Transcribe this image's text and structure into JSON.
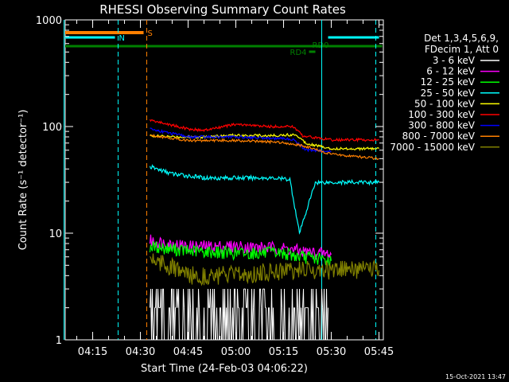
{
  "chart_data": {
    "type": "line",
    "title": "RHESSI Observing Summary Count Rates",
    "xlabel": "Start Time (24-Feb-03 04:06:22)",
    "ylabel": "Count Rate (s⁻¹ detector⁻¹)",
    "y_scale": "log",
    "ylim": [
      1,
      1000
    ],
    "xlim_minutes_after_04_06_22": [
      0,
      100
    ],
    "x_tick_labels": [
      "04:15",
      "04:30",
      "04:45",
      "05:00",
      "05:15",
      "05:30",
      "05:45"
    ],
    "y_tick_labels": [
      "1",
      "10",
      "100",
      "1000"
    ],
    "legend_header": [
      "Det 1,3,4,5,6,9,",
      "FDecim 1, Att 0"
    ],
    "timestamp": "15-Oct-2021 13:47",
    "flags": [
      {
        "label": "S",
        "color": "#ff8000",
        "start": "04:06",
        "end": "04:31"
      },
      {
        "label": "N",
        "color": "#00ffff",
        "start": "04:06",
        "end": "04:22"
      },
      {
        "label": "N",
        "color": "#00ffff",
        "start": "05:29",
        "end": "05:45"
      },
      {
        "label": "RD0",
        "color": "#008000",
        "start": "04:06",
        "end": "05:46"
      },
      {
        "label": "RD4",
        "color": "#008000",
        "start": "05:23",
        "end": "05:25"
      }
    ],
    "vertical_markers": [
      {
        "time": "04:06",
        "color": "#00ffff",
        "style": "solid"
      },
      {
        "time": "04:23",
        "color": "#00ffff",
        "style": "dashed"
      },
      {
        "time": "04:32",
        "color": "#ff8000",
        "style": "dashed"
      },
      {
        "time": "05:27",
        "color": "#00ffff",
        "style": "solid"
      },
      {
        "time": "05:44",
        "color": "#00ffff",
        "style": "dashed"
      }
    ],
    "series": [
      {
        "name": "3 - 6 keV",
        "color": "#ffffff",
        "x": [
          "04:33",
          "04:45",
          "05:00",
          "05:15",
          "05:20",
          "05:25",
          "05:29"
        ],
        "values": [
          1.7,
          1.8,
          2.2,
          2.5,
          2.8,
          2.2,
          1.5
        ]
      },
      {
        "name": "6 - 12 keV",
        "color": "#ff00ff",
        "x": [
          "04:33",
          "04:45",
          "05:00",
          "05:15",
          "05:20",
          "05:25",
          "05:30"
        ],
        "values": [
          8.5,
          7.5,
          7.5,
          7.2,
          6.8,
          6.5,
          6.3
        ]
      },
      {
        "name": "12 - 25 keV",
        "color": "#00ff00",
        "x": [
          "04:33",
          "04:45",
          "05:00",
          "05:15",
          "05:20",
          "05:25",
          "05:30"
        ],
        "values": [
          7.5,
          6.8,
          6.5,
          6.5,
          6.0,
          5.8,
          5.5
        ]
      },
      {
        "name": "25 - 50 keV",
        "color": "#00ffff",
        "x": [
          "04:33",
          "04:40",
          "04:50",
          "05:00",
          "05:10",
          "05:17",
          "05:20",
          "05:25",
          "05:35",
          "05:45"
        ],
        "values": [
          42,
          36,
          33,
          33,
          33,
          32,
          10,
          30,
          30,
          30
        ]
      },
      {
        "name": "50 - 100 keV",
        "color": "#ffff00",
        "x": [
          "04:33",
          "04:40",
          "04:50",
          "05:00",
          "05:10",
          "05:19",
          "05:22",
          "05:30",
          "05:45"
        ],
        "values": [
          82,
          80,
          80,
          83,
          82,
          84,
          70,
          62,
          62
        ]
      },
      {
        "name": "100 - 300 keV",
        "color": "#ff0000",
        "x": [
          "04:33",
          "04:45",
          "04:50",
          "05:00",
          "05:10",
          "05:18",
          "05:21",
          "05:30",
          "05:45"
        ],
        "values": [
          115,
          95,
          92,
          105,
          100,
          100,
          82,
          75,
          75
        ]
      },
      {
        "name": "300 - 800 keV",
        "color": "#0000ff",
        "x": [
          "04:33",
          "04:45",
          "05:00",
          "05:10",
          "05:18",
          "05:22",
          "05:30"
        ],
        "values": [
          95,
          80,
          80,
          78,
          76,
          60,
          58
        ]
      },
      {
        "name": "800 - 7000 keV",
        "color": "#ff8000",
        "x": [
          "04:33",
          "04:45",
          "05:00",
          "05:15",
          "05:22",
          "05:30",
          "05:45"
        ],
        "values": [
          83,
          74,
          74,
          71,
          65,
          55,
          50
        ]
      },
      {
        "name": "7000 - 15000 keV",
        "color": "#808000",
        "x": [
          "04:33",
          "04:45",
          "05:00",
          "05:15",
          "05:25",
          "05:45"
        ],
        "values": [
          6,
          4,
          4,
          4.5,
          4.5,
          4.5
        ]
      }
    ]
  }
}
